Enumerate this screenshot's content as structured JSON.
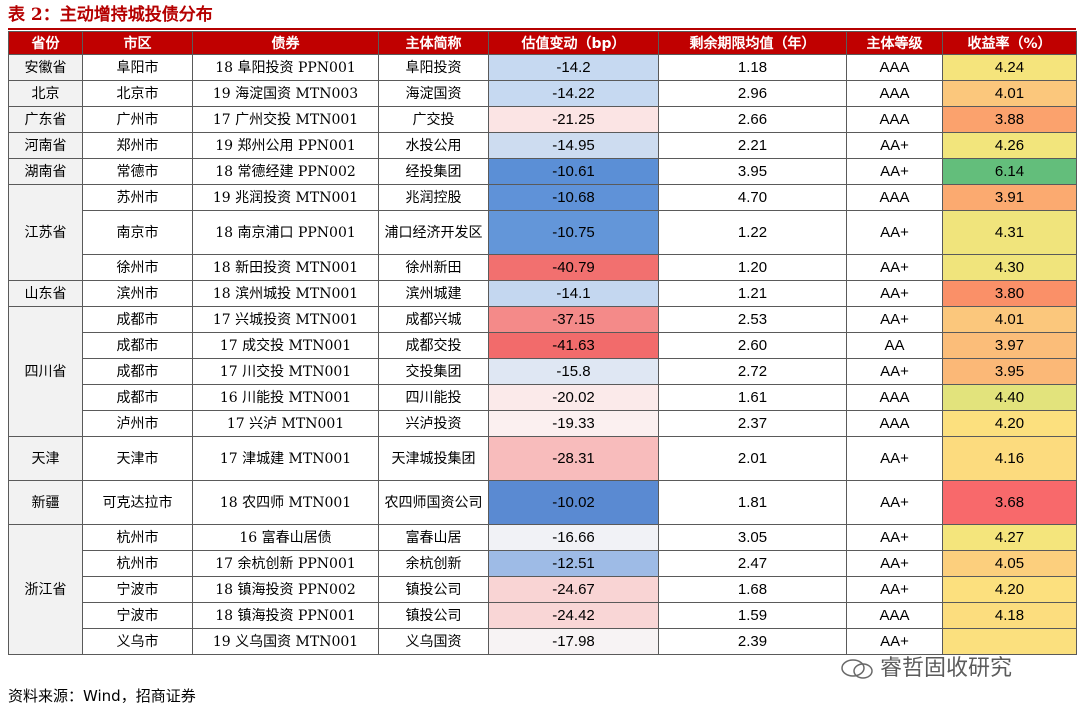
{
  "title": "表 2：主动增持城投债分布",
  "headers": [
    "省份",
    "市区",
    "债券",
    "主体简称",
    "估值变动（bp）",
    "剩余期限均值（年）",
    "主体等级",
    "收益率（%）"
  ],
  "province_groups": [
    {
      "province": "安徽省",
      "rows": [
        {
          "city": "阜阳市",
          "bond": "18 阜阳投资 PPN001",
          "issuer": "阜阳投资",
          "change": "-14.2",
          "maturity": "1.18",
          "rating": "AAA",
          "yield": "4.24",
          "change_color": "#c6d9f1",
          "yield_color": "#f5e47c"
        }
      ]
    },
    {
      "province": "北京",
      "rows": [
        {
          "city": "北京市",
          "bond": "19 海淀国资 MTN003",
          "issuer": "海淀国资",
          "change": "-14.22",
          "maturity": "2.96",
          "rating": "AAA",
          "yield": "4.01",
          "change_color": "#c6d9f1",
          "yield_color": "#fbc77c"
        }
      ]
    },
    {
      "province": "广东省",
      "rows": [
        {
          "city": "广州市",
          "bond": "17 广州交投 MTN001",
          "issuer": "广交投",
          "change": "-21.25",
          "maturity": "2.66",
          "rating": "AAA",
          "yield": "3.88",
          "change_color": "#fbe4e4",
          "yield_color": "#fba26d"
        }
      ]
    },
    {
      "province": "河南省",
      "rows": [
        {
          "city": "郑州市",
          "bond": "19 郑州公用 PPN001",
          "issuer": "水投公用",
          "change": "-14.95",
          "maturity": "2.21",
          "rating": "AA+",
          "yield": "4.26",
          "change_color": "#cddcf0",
          "yield_color": "#f2e57c"
        }
      ]
    },
    {
      "province": "湖南省",
      "rows": [
        {
          "city": "常德市",
          "bond": "18 常德经建 PPN002",
          "issuer": "经投集团",
          "change": "-10.61",
          "maturity": "3.95",
          "rating": "AA+",
          "yield": "6.14",
          "change_color": "#5b8fd6",
          "yield_color": "#63be7b"
        }
      ]
    },
    {
      "province": "江苏省",
      "rows": [
        {
          "city": "苏州市",
          "bond": "19 兆润投资 MTN001",
          "issuer": "兆润控股",
          "change": "-10.68",
          "maturity": "4.70",
          "rating": "AAA",
          "yield": "3.91",
          "change_color": "#5f92d8",
          "yield_color": "#fbaa70"
        },
        {
          "city": "南京市",
          "bond": "18 南京浦口 PPN001",
          "issuer": "浦口经济开发区",
          "change": "-10.75",
          "maturity": "1.22",
          "rating": "AA+",
          "yield": "4.31",
          "change_color": "#6396d9",
          "yield_color": "#f0e47c"
        },
        {
          "city": "徐州市",
          "bond": "18 新田投资 MTN001",
          "issuer": "徐州新田",
          "change": "-40.79",
          "maturity": "1.20",
          "rating": "AA+",
          "yield": "4.30",
          "change_color": "#f2706f",
          "yield_color": "#f0e47c"
        }
      ]
    },
    {
      "province": "山东省",
      "rows": [
        {
          "city": "滨州市",
          "bond": "18 滨州城投 MTN001",
          "issuer": "滨州城建",
          "change": "-14.1",
          "maturity": "1.21",
          "rating": "AA+",
          "yield": "3.80",
          "change_color": "#c4d7f0",
          "yield_color": "#fa9068"
        }
      ]
    },
    {
      "province": "四川省",
      "rows": [
        {
          "city": "成都市",
          "bond": "17 兴城投资 MTN001",
          "issuer": "成都兴城",
          "change": "-37.15",
          "maturity": "2.53",
          "rating": "AA+",
          "yield": "4.01",
          "change_color": "#f48a89",
          "yield_color": "#fbc77c"
        },
        {
          "city": "成都市",
          "bond": "17 成交投 MTN001",
          "issuer": "成都交投",
          "change": "-41.63",
          "maturity": "2.60",
          "rating": "AA",
          "yield": "3.97",
          "change_color": "#f26b6b",
          "yield_color": "#fbbd79"
        },
        {
          "city": "成都市",
          "bond": "17 川交投 MTN001",
          "issuer": "交投集团",
          "change": "-15.8",
          "maturity": "2.72",
          "rating": "AA+",
          "yield": "3.95",
          "change_color": "#dfe7f3",
          "yield_color": "#fbb877"
        },
        {
          "city": "成都市",
          "bond": "16 川能投 MTN001",
          "issuer": "四川能投",
          "change": "-20.02",
          "maturity": "1.61",
          "rating": "AAA",
          "yield": "4.40",
          "change_color": "#fbeaea",
          "yield_color": "#e2e37c"
        },
        {
          "city": "泸州市",
          "bond": "17 兴泸 MTN001",
          "issuer": "兴泸投资",
          "change": "-19.33",
          "maturity": "2.37",
          "rating": "AAA",
          "yield": "4.20",
          "change_color": "#fbf0f0",
          "yield_color": "#fce07e"
        }
      ]
    },
    {
      "province": "天津",
      "rows": [
        {
          "city": "天津市",
          "bond": "17 津城建 MTN001",
          "issuer": "天津城投集团",
          "change": "-28.31",
          "maturity": "2.01",
          "rating": "AA+",
          "yield": "4.16",
          "change_color": "#f8bcbc",
          "yield_color": "#fcdb7e"
        }
      ]
    },
    {
      "province": "新疆",
      "rows": [
        {
          "city": "可克达拉市",
          "bond": "18 农四师 MTN001",
          "issuer": "农四师国资公司",
          "change": "-10.02",
          "maturity": "1.81",
          "rating": "AA+",
          "yield": "3.68",
          "change_color": "#5a8ad2",
          "yield_color": "#f8696b"
        }
      ]
    },
    {
      "province": "浙江省",
      "rows": [
        {
          "city": "杭州市",
          "bond": "16 富春山居债",
          "issuer": "富春山居",
          "change": "-16.66",
          "maturity": "3.05",
          "rating": "AA+",
          "yield": "4.27",
          "change_color": "#f1f2f6",
          "yield_color": "#f4e57c"
        },
        {
          "city": "杭州市",
          "bond": "17 余杭创新 PPN001",
          "issuer": "余杭创新",
          "change": "-12.51",
          "maturity": "2.47",
          "rating": "AA+",
          "yield": "4.05",
          "change_color": "#9ebbe6",
          "yield_color": "#fccf7d"
        },
        {
          "city": "宁波市",
          "bond": "18 镇海投资 PPN002",
          "issuer": "镇投公司",
          "change": "-24.67",
          "maturity": "1.68",
          "rating": "AA+",
          "yield": "4.20",
          "change_color": "#f9d4d4",
          "yield_color": "#fce07e"
        },
        {
          "city": "宁波市",
          "bond": "18 镇海投资 PPN001",
          "issuer": "镇投公司",
          "change": "-24.42",
          "maturity": "1.59",
          "rating": "AAA",
          "yield": "4.18",
          "change_color": "#f9d6d6",
          "yield_color": "#fcdd7e"
        },
        {
          "city": "义乌市",
          "bond": "19 义乌国资 MTN001",
          "issuer": "义乌国资",
          "change": "-17.98",
          "maturity": "2.39",
          "rating": "AA+",
          "yield": "",
          "change_color": "#f7f3f4",
          "yield_color": "#fbe07e"
        }
      ]
    }
  ],
  "footer": "资料来源：Wind，招商证券",
  "watermark": "睿哲固收研究"
}
